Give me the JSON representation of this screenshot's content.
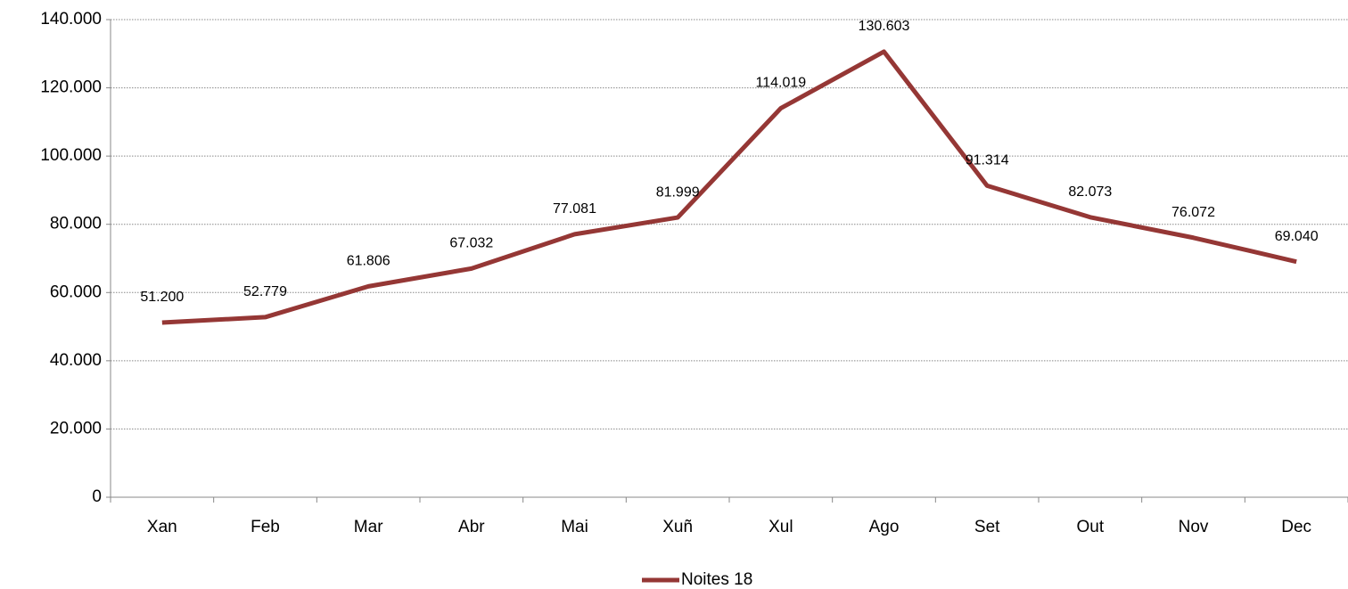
{
  "chart_data": {
    "type": "line",
    "categories": [
      "Xan",
      "Feb",
      "Mar",
      "Abr",
      "Mai",
      "Xuñ",
      "Xul",
      "Ago",
      "Set",
      "Out",
      "Nov",
      "Dec"
    ],
    "series": [
      {
        "name": "Noites 18",
        "color": "#953735",
        "values": [
          51200,
          52779,
          61806,
          67032,
          77081,
          81999,
          114019,
          130603,
          91314,
          82073,
          76072,
          69040
        ],
        "value_labels": [
          "51.200",
          "52.779",
          "61.806",
          "67.032",
          "77.081",
          "81.999",
          "114.019",
          "130.603",
          "91.314",
          "82.073",
          "76.072",
          "69.040"
        ]
      }
    ],
    "ylim": [
      0,
      140000
    ],
    "yticks": [
      0,
      {
        "value": 20000,
        "label": "20.000"
      },
      {
        "value": 40000,
        "label": "40.000"
      },
      {
        "value": 60000,
        "label": "60.000"
      },
      {
        "value": 80000,
        "label": "80.000"
      },
      {
        "value": 100000,
        "label": "100.000"
      },
      {
        "value": 120000,
        "label": "120.000"
      },
      {
        "value": 140000,
        "label": "140.000"
      }
    ],
    "grid": true,
    "legend": "bottom"
  }
}
